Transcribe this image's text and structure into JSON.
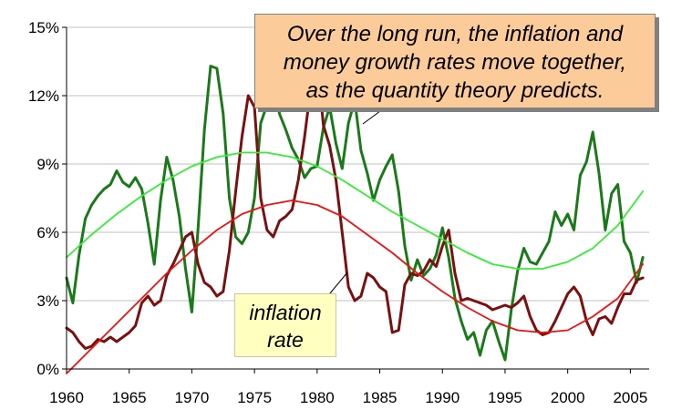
{
  "chart_data": {
    "type": "line",
    "title": "",
    "xlabel": "",
    "ylabel": "",
    "xlim": [
      1960,
      2006.5
    ],
    "ylim": [
      0,
      15
    ],
    "x_ticks": [
      1960,
      1965,
      1970,
      1975,
      1980,
      1985,
      1990,
      1995,
      2000,
      2005
    ],
    "y_ticks": [
      0,
      3,
      6,
      9,
      12,
      15
    ],
    "y_tick_labels": [
      "0%",
      "3%",
      "6%",
      "9%",
      "12%",
      "15%"
    ],
    "grid": "horizontal",
    "series": [
      {
        "color": "#1a7a1a",
        "x": [
          1960,
          1960.5,
          1961,
          1961.5,
          1962,
          1962.5,
          1963,
          1963.5,
          1964,
          1964.5,
          1965,
          1965.5,
          1966,
          1966.5,
          1967,
          1967.5,
          1968,
          1968.5,
          1969,
          1969.5,
          1970,
          1970.5,
          1971,
          1971.5,
          1972,
          1972.5,
          1973,
          1973.5,
          1974,
          1974.5,
          1975,
          1975.5,
          1976,
          1976.5,
          1977,
          1977.5,
          1978,
          1978.5,
          1979,
          1979.5,
          1980,
          1980.5,
          1981,
          1981.5,
          1982,
          1982.5,
          1983,
          1983.5,
          1984,
          1984.5,
          1985,
          1985.5,
          1986,
          1986.5,
          1987,
          1987.5,
          1988,
          1988.5,
          1989,
          1989.5,
          1990,
          1990.5,
          1991,
          1991.5,
          1992,
          1992.5,
          1993,
          1993.5,
          1994,
          1994.5,
          1995,
          1995.5,
          1996,
          1996.5,
          1997,
          1997.5,
          1998,
          1998.5,
          1999,
          1999.5,
          2000,
          2000.5,
          2001,
          2001.5,
          2002,
          2002.5,
          2003,
          2003.5,
          2004,
          2004.5,
          2005,
          2005.5,
          2006
        ],
        "values": [
          4.0,
          2.9,
          5.0,
          6.6,
          7.2,
          7.6,
          7.9,
          8.1,
          8.7,
          8.2,
          8.0,
          8.4,
          7.9,
          6.4,
          4.6,
          7.4,
          9.3,
          8.3,
          6.7,
          4.4,
          2.5,
          6.2,
          10.5,
          13.3,
          13.2,
          11.2,
          7.5,
          5.8,
          5.5,
          6.0,
          7.5,
          10.8,
          11.6,
          12.4,
          11.2,
          10.5,
          9.7,
          9.2,
          8.4,
          8.8,
          8.9,
          10.6,
          11.5,
          9.9,
          8.8,
          10.8,
          11.8,
          9.6,
          8.6,
          7.4,
          8.3,
          8.9,
          9.4,
          7.8,
          5.4,
          3.9,
          4.8,
          4.1,
          4.4,
          5.0,
          6.2,
          4.9,
          3.1,
          2.1,
          1.3,
          1.6,
          0.6,
          1.7,
          2.1,
          1.2,
          0.4,
          2.6,
          4.3,
          5.3,
          4.7,
          4.6,
          5.1,
          5.6,
          6.9,
          6.3,
          6.8,
          6.1,
          8.5,
          9.1,
          10.4,
          8.6,
          6.1,
          7.7,
          8.1,
          5.6,
          5.1,
          3.8,
          4.9
        ]
      },
      {
        "color": "#7a1010",
        "x": [
          1960,
          1960.5,
          1961,
          1961.5,
          1962,
          1962.5,
          1963,
          1963.5,
          1964,
          1964.5,
          1965,
          1965.5,
          1966,
          1966.5,
          1967,
          1967.5,
          1968,
          1968.5,
          1969,
          1969.5,
          1970,
          1970.5,
          1971,
          1971.5,
          1972,
          1972.5,
          1973,
          1973.5,
          1974,
          1974.5,
          1975,
          1975.5,
          1976,
          1976.5,
          1977,
          1977.5,
          1978,
          1978.5,
          1979,
          1979.5,
          1980,
          1980.5,
          1981,
          1981.5,
          1982,
          1982.5,
          1983,
          1983.5,
          1984,
          1984.5,
          1985,
          1985.5,
          1986,
          1986.5,
          1987,
          1987.5,
          1988,
          1988.5,
          1989,
          1989.5,
          1990,
          1990.5,
          1991,
          1991.5,
          1992,
          1992.5,
          1993,
          1993.5,
          1994,
          1994.5,
          1995,
          1995.5,
          1996,
          1996.5,
          1997,
          1997.5,
          1998,
          1998.5,
          1999,
          1999.5,
          2000,
          2000.5,
          2001,
          2001.5,
          2002,
          2002.5,
          2003,
          2003.5,
          2004,
          2004.5,
          2005,
          2005.5,
          2006
        ],
        "values": [
          1.8,
          1.6,
          1.2,
          0.9,
          1.0,
          1.3,
          1.2,
          1.4,
          1.2,
          1.4,
          1.6,
          1.9,
          2.9,
          3.2,
          2.8,
          3.0,
          4.1,
          4.6,
          5.2,
          5.8,
          6.0,
          4.6,
          3.8,
          3.6,
          3.2,
          3.4,
          5.2,
          7.8,
          10.2,
          12.0,
          11.5,
          7.5,
          6.1,
          5.8,
          6.5,
          6.7,
          7.0,
          8.3,
          10.2,
          12.4,
          13.6,
          10.7,
          9.8,
          8.3,
          6.0,
          3.6,
          3.0,
          3.2,
          4.2,
          4.0,
          3.6,
          3.4,
          1.6,
          1.7,
          3.7,
          4.2,
          4.1,
          4.3,
          4.8,
          4.5,
          5.4,
          6.1,
          4.2,
          3.0,
          3.1,
          3.0,
          2.9,
          2.8,
          2.6,
          2.7,
          2.8,
          2.7,
          2.9,
          3.2,
          2.3,
          1.7,
          1.5,
          1.6,
          2.1,
          2.7,
          3.3,
          3.6,
          3.2,
          2.1,
          1.5,
          2.2,
          2.3,
          2.0,
          2.7,
          3.3,
          3.3,
          3.9,
          4.0
        ]
      },
      {
        "color": "#33ee33",
        "x": [
          1960,
          1962,
          1964,
          1966,
          1968,
          1970,
          1972,
          1974,
          1976,
          1978,
          1980,
          1982,
          1984,
          1986,
          1988,
          1990,
          1992,
          1994,
          1996,
          1998,
          2000,
          2002,
          2004,
          2006
        ],
        "values": [
          4.9,
          5.9,
          6.8,
          7.6,
          8.3,
          8.9,
          9.3,
          9.5,
          9.5,
          9.3,
          8.9,
          8.3,
          7.6,
          6.9,
          6.3,
          5.7,
          5.1,
          4.6,
          4.4,
          4.4,
          4.7,
          5.3,
          6.3,
          7.8
        ]
      },
      {
        "color": "#ee1111",
        "x": [
          1960,
          1962,
          1964,
          1966,
          1968,
          1970,
          1972,
          1974,
          1976,
          1978,
          1980,
          1982,
          1984,
          1986,
          1988,
          1990,
          1992,
          1994,
          1996,
          1998,
          2000,
          2002,
          2004,
          2006
        ],
        "values": [
          -0.2,
          0.9,
          2.0,
          3.1,
          4.2,
          5.2,
          6.1,
          6.8,
          7.2,
          7.4,
          7.2,
          6.7,
          5.9,
          5.1,
          4.2,
          3.4,
          2.7,
          2.1,
          1.7,
          1.6,
          1.7,
          2.3,
          3.1,
          4.6
        ]
      }
    ]
  },
  "annotations": {
    "main_callout": [
      "Over the long run, the inflation and",
      "money growth rates move together,",
      "as the quantity theory predicts."
    ],
    "inflation_label": [
      "inflation",
      "rate"
    ]
  },
  "colors": {
    "callout_main_bg": "#fbcb9a",
    "callout_inflation_bg": "#ffffc0",
    "grid": "#c0c0c0"
  }
}
